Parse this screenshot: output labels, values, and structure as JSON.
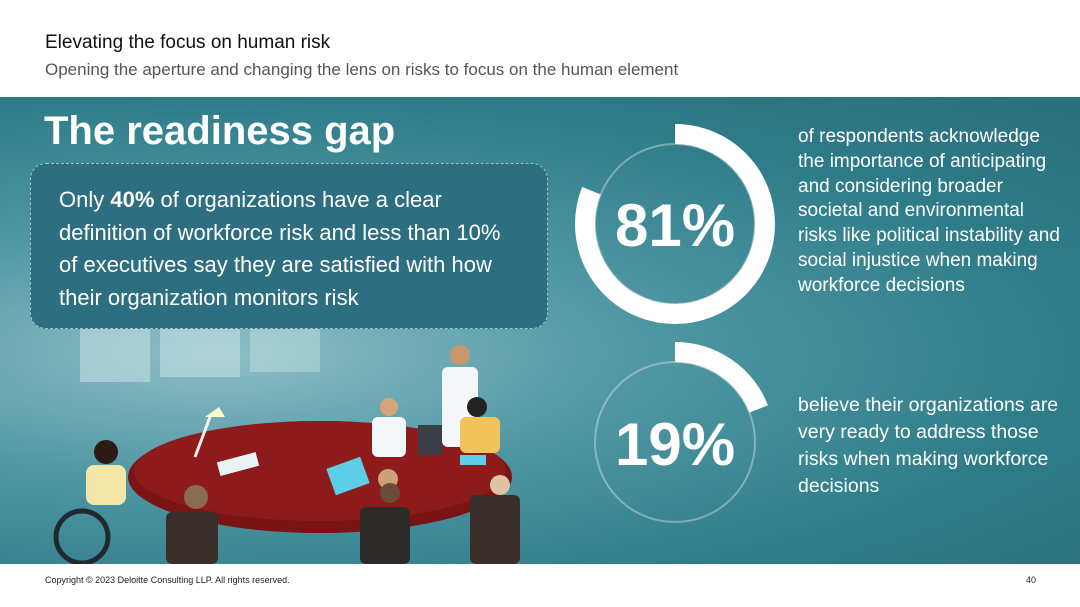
{
  "header": {
    "title": "Elevating the focus on human risk",
    "subtitle": "Opening the aperture and changing the lens on risks to focus on the human element"
  },
  "main": {
    "heading": "The readiness gap",
    "callout": {
      "prefix": "Only ",
      "highlight": "40%",
      "rest": " of organizations have a clear definition of workforce risk and less than 10% of executives say they are satisfied with how their organization monitors risk"
    },
    "stats": [
      {
        "value": "81%",
        "percent": 81,
        "description": "of respondents acknowledge the importance of anticipating and considering broader societal and environmental risks like political instability and social injustice when making workforce decisions"
      },
      {
        "value": "19%",
        "percent": 19,
        "description": "believe their organizations are very ready to address those risks when making workforce decisions"
      }
    ]
  },
  "footer": {
    "copyright": "Copyright © 2023 Deloitte Consulting LLP. All rights reserved.",
    "page_number": "40"
  },
  "colors": {
    "panel": "#2f7c89",
    "callout": "#2d6f80",
    "ring": "#ffffff",
    "table": "#7a1414"
  }
}
